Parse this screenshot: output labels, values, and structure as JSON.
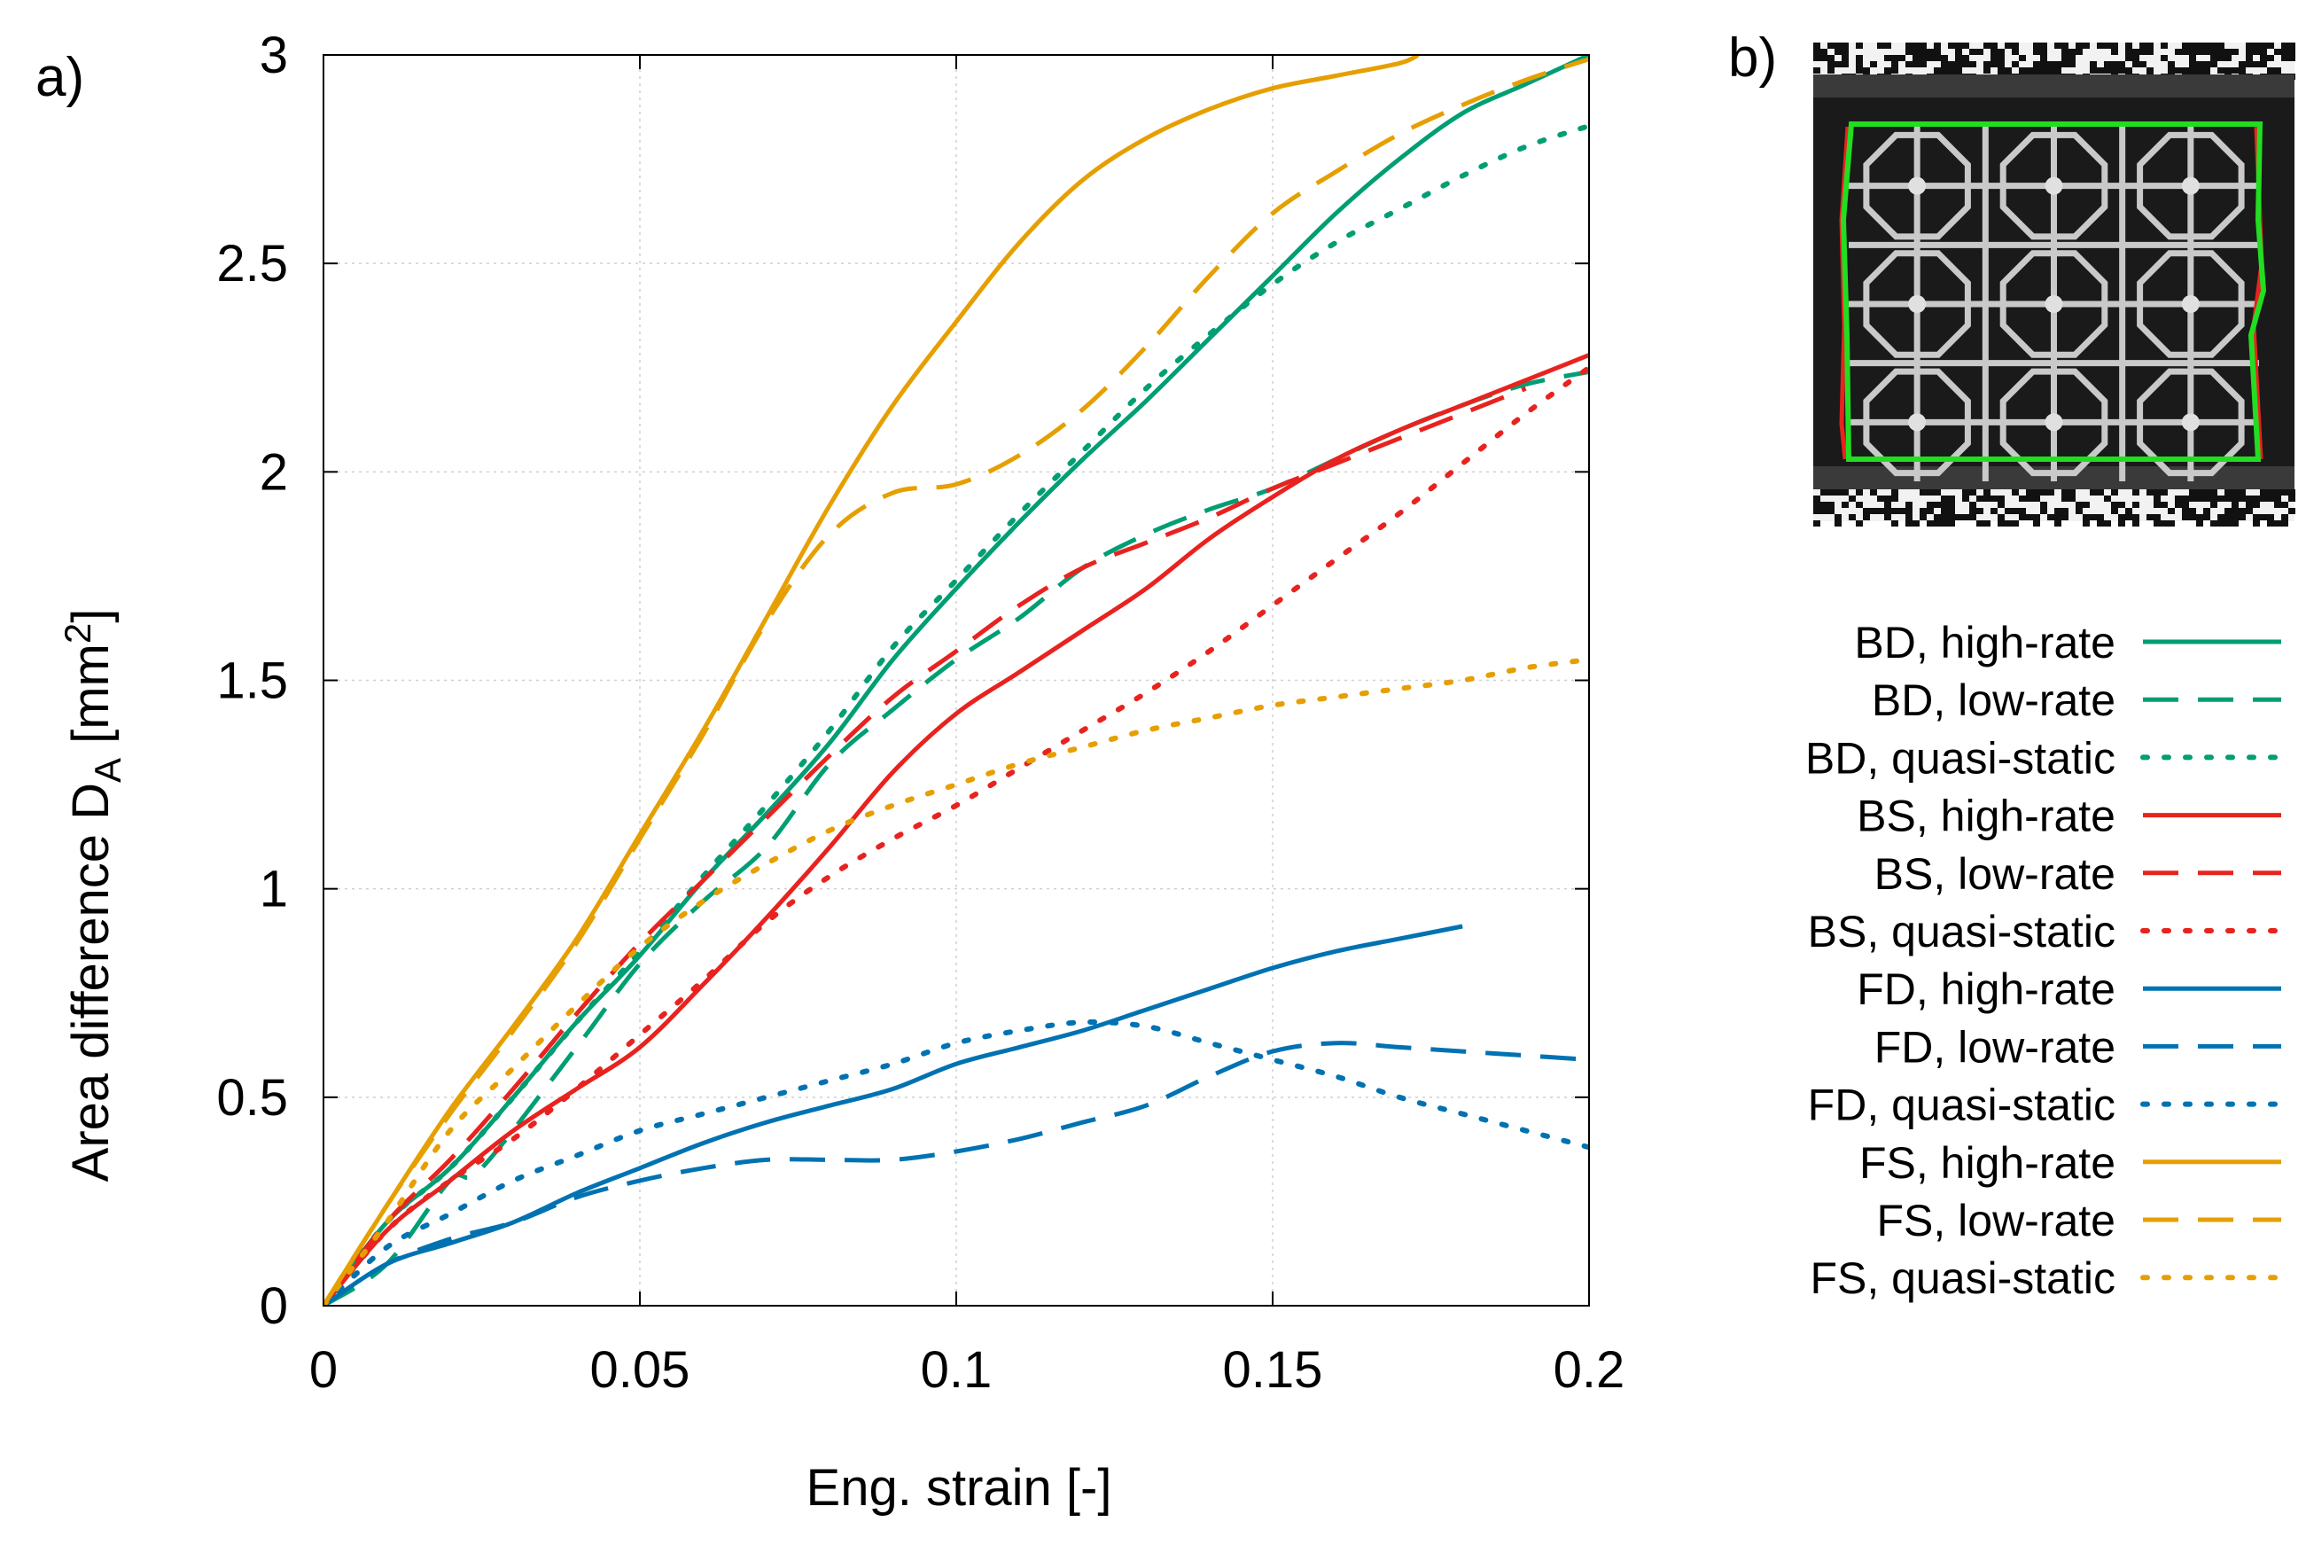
{
  "panels": {
    "a_label": "a)",
    "b_label": "b)"
  },
  "chart_data": {
    "type": "line",
    "xlabel": "Eng. strain [-]",
    "ylabel": "Area difference D",
    "ylabel_sub": "A",
    "ylabel_unit_pre": " [mm",
    "ylabel_unit_sup": "2",
    "ylabel_unit_post": "]",
    "xlim": [
      0,
      0.2
    ],
    "ylim": [
      0,
      3
    ],
    "xticks": [
      0,
      0.05,
      0.1,
      0.15,
      0.2
    ],
    "xtick_labels": [
      "0",
      "0.05",
      "0.1",
      "0.15",
      "0.2"
    ],
    "yticks": [
      0,
      0.5,
      1,
      1.5,
      2,
      2.5,
      3
    ],
    "ytick_labels": [
      "0",
      "0.5",
      "1",
      "1.5",
      "2",
      "2.5",
      "3"
    ],
    "grid": true,
    "legend_position": "right",
    "colors": {
      "BD": "#009e73",
      "BS": "#e8231f",
      "FD": "#0072b2",
      "FS": "#e69f00"
    },
    "series": [
      {
        "name": "BD, high-rate",
        "group": "BD",
        "style": "solid",
        "x": [
          0,
          0.01,
          0.02,
          0.03,
          0.04,
          0.05,
          0.06,
          0.07,
          0.08,
          0.09,
          0.1,
          0.11,
          0.12,
          0.13,
          0.14,
          0.15,
          0.16,
          0.17,
          0.18,
          0.19,
          0.2
        ],
        "y": [
          0,
          0.2,
          0.33,
          0.5,
          0.68,
          0.84,
          1.02,
          1.18,
          1.35,
          1.55,
          1.72,
          1.88,
          2.03,
          2.17,
          2.32,
          2.47,
          2.62,
          2.75,
          2.86,
          2.93,
          3.0
        ]
      },
      {
        "name": "BD, low-rate",
        "group": "BD",
        "style": "dashed",
        "x": [
          0,
          0.01,
          0.02,
          0.025,
          0.04,
          0.05,
          0.06,
          0.07,
          0.08,
          0.09,
          0.1,
          0.11,
          0.12,
          0.13,
          0.14,
          0.15,
          0.16,
          0.17,
          0.18,
          0.19,
          0.2
        ],
        "y": [
          0,
          0.1,
          0.3,
          0.33,
          0.62,
          0.82,
          0.97,
          1.1,
          1.3,
          1.43,
          1.55,
          1.65,
          1.77,
          1.85,
          1.91,
          1.96,
          2.03,
          2.1,
          2.16,
          2.21,
          2.24
        ]
      },
      {
        "name": "BD, quasi-static",
        "group": "BD",
        "style": "dotted",
        "x": [
          0,
          0.01,
          0.02,
          0.03,
          0.04,
          0.05,
          0.06,
          0.07,
          0.08,
          0.09,
          0.1,
          0.11,
          0.12,
          0.13,
          0.14,
          0.15,
          0.16,
          0.17,
          0.18,
          0.19,
          0.2
        ],
        "y": [
          0,
          0.2,
          0.33,
          0.5,
          0.68,
          0.85,
          1.03,
          1.2,
          1.38,
          1.58,
          1.74,
          1.9,
          2.05,
          2.2,
          2.33,
          2.45,
          2.55,
          2.63,
          2.71,
          2.78,
          2.83
        ]
      },
      {
        "name": "BS, high-rate",
        "group": "BS",
        "style": "solid",
        "x": [
          0,
          0.01,
          0.02,
          0.03,
          0.04,
          0.05,
          0.06,
          0.07,
          0.08,
          0.09,
          0.1,
          0.11,
          0.12,
          0.13,
          0.14,
          0.15,
          0.16,
          0.17,
          0.18,
          0.19,
          0.2
        ],
        "y": [
          0,
          0.18,
          0.3,
          0.42,
          0.52,
          0.62,
          0.77,
          0.93,
          1.1,
          1.28,
          1.42,
          1.52,
          1.62,
          1.72,
          1.84,
          1.94,
          2.03,
          2.1,
          2.16,
          2.22,
          2.28
        ]
      },
      {
        "name": "BS, low-rate",
        "group": "BS",
        "style": "dashed",
        "x": [
          0,
          0.01,
          0.02,
          0.03,
          0.04,
          0.05,
          0.06,
          0.07,
          0.08,
          0.09,
          0.1,
          0.11,
          0.12,
          0.13,
          0.14,
          0.15,
          0.16,
          0.17,
          0.18,
          0.19
        ],
        "y": [
          0,
          0.2,
          0.35,
          0.52,
          0.7,
          0.87,
          1.02,
          1.17,
          1.32,
          1.46,
          1.57,
          1.68,
          1.77,
          1.83,
          1.89,
          1.96,
          2.02,
          2.08,
          2.14,
          2.2
        ]
      },
      {
        "name": "BS, quasi-static",
        "group": "BS",
        "style": "dotted",
        "x": [
          0,
          0.01,
          0.02,
          0.03,
          0.04,
          0.05,
          0.06,
          0.07,
          0.08,
          0.09,
          0.1,
          0.11,
          0.12,
          0.13,
          0.14,
          0.15,
          0.16,
          0.17,
          0.18,
          0.19,
          0.2
        ],
        "y": [
          0,
          0.18,
          0.3,
          0.4,
          0.52,
          0.65,
          0.78,
          0.92,
          1.03,
          1.12,
          1.2,
          1.29,
          1.38,
          1.47,
          1.57,
          1.68,
          1.79,
          1.9,
          2.02,
          2.14,
          2.25
        ]
      },
      {
        "name": "FD, high-rate",
        "group": "FD",
        "style": "solid",
        "x": [
          0,
          0.01,
          0.02,
          0.03,
          0.04,
          0.05,
          0.06,
          0.07,
          0.08,
          0.09,
          0.1,
          0.11,
          0.12,
          0.13,
          0.14,
          0.15,
          0.16,
          0.17,
          0.18
        ],
        "y": [
          0,
          0.1,
          0.15,
          0.2,
          0.27,
          0.33,
          0.39,
          0.44,
          0.48,
          0.52,
          0.58,
          0.62,
          0.66,
          0.71,
          0.76,
          0.81,
          0.85,
          0.88,
          0.91
        ]
      },
      {
        "name": "FD, low-rate",
        "group": "FD",
        "style": "dashed",
        "x": [
          0,
          0.01,
          0.02,
          0.03,
          0.04,
          0.05,
          0.06,
          0.07,
          0.08,
          0.09,
          0.1,
          0.11,
          0.12,
          0.13,
          0.14,
          0.15,
          0.16,
          0.17,
          0.18,
          0.19,
          0.2
        ],
        "y": [
          0,
          0.1,
          0.16,
          0.2,
          0.26,
          0.3,
          0.33,
          0.35,
          0.35,
          0.35,
          0.37,
          0.4,
          0.44,
          0.48,
          0.55,
          0.61,
          0.63,
          0.62,
          0.61,
          0.6,
          0.59
        ]
      },
      {
        "name": "FD, quasi-static",
        "group": "FD",
        "style": "dotted",
        "x": [
          0,
          0.01,
          0.02,
          0.03,
          0.04,
          0.05,
          0.06,
          0.07,
          0.08,
          0.09,
          0.1,
          0.11,
          0.12,
          0.13,
          0.14,
          0.15,
          0.16,
          0.17,
          0.18,
          0.19,
          0.2
        ],
        "y": [
          0,
          0.14,
          0.22,
          0.3,
          0.36,
          0.42,
          0.46,
          0.5,
          0.54,
          0.58,
          0.63,
          0.66,
          0.68,
          0.67,
          0.63,
          0.59,
          0.55,
          0.5,
          0.46,
          0.42,
          0.38
        ]
      },
      {
        "name": "FS, high-rate",
        "group": "FS",
        "style": "solid",
        "x": [
          0,
          0.01,
          0.02,
          0.03,
          0.04,
          0.05,
          0.06,
          0.07,
          0.08,
          0.09,
          0.1,
          0.11,
          0.12,
          0.13,
          0.14,
          0.15,
          0.16,
          0.17,
          0.173
        ],
        "y": [
          0,
          0.24,
          0.47,
          0.67,
          0.88,
          1.13,
          1.38,
          1.65,
          1.92,
          2.16,
          2.36,
          2.55,
          2.7,
          2.8,
          2.87,
          2.92,
          2.95,
          2.98,
          3.0
        ]
      },
      {
        "name": "FS, low-rate",
        "group": "FS",
        "style": "dashed",
        "x": [
          0,
          0.01,
          0.02,
          0.03,
          0.04,
          0.05,
          0.06,
          0.07,
          0.08,
          0.09,
          0.1,
          0.11,
          0.12,
          0.13,
          0.14,
          0.15,
          0.16,
          0.17,
          0.18,
          0.19,
          0.2
        ],
        "y": [
          0,
          0.24,
          0.46,
          0.66,
          0.87,
          1.12,
          1.37,
          1.64,
          1.85,
          1.95,
          1.97,
          2.04,
          2.15,
          2.3,
          2.47,
          2.62,
          2.72,
          2.81,
          2.88,
          2.94,
          2.99
        ]
      },
      {
        "name": "FS, quasi-static",
        "group": "FS",
        "style": "dotted",
        "x": [
          0,
          0.01,
          0.02,
          0.03,
          0.04,
          0.05,
          0.06,
          0.07,
          0.08,
          0.09,
          0.1,
          0.11,
          0.12,
          0.13,
          0.14,
          0.15,
          0.16,
          0.17,
          0.18,
          0.19,
          0.2
        ],
        "y": [
          0,
          0.2,
          0.42,
          0.57,
          0.72,
          0.86,
          0.97,
          1.06,
          1.14,
          1.2,
          1.25,
          1.3,
          1.34,
          1.38,
          1.41,
          1.44,
          1.46,
          1.48,
          1.5,
          1.53,
          1.55
        ]
      }
    ]
  }
}
